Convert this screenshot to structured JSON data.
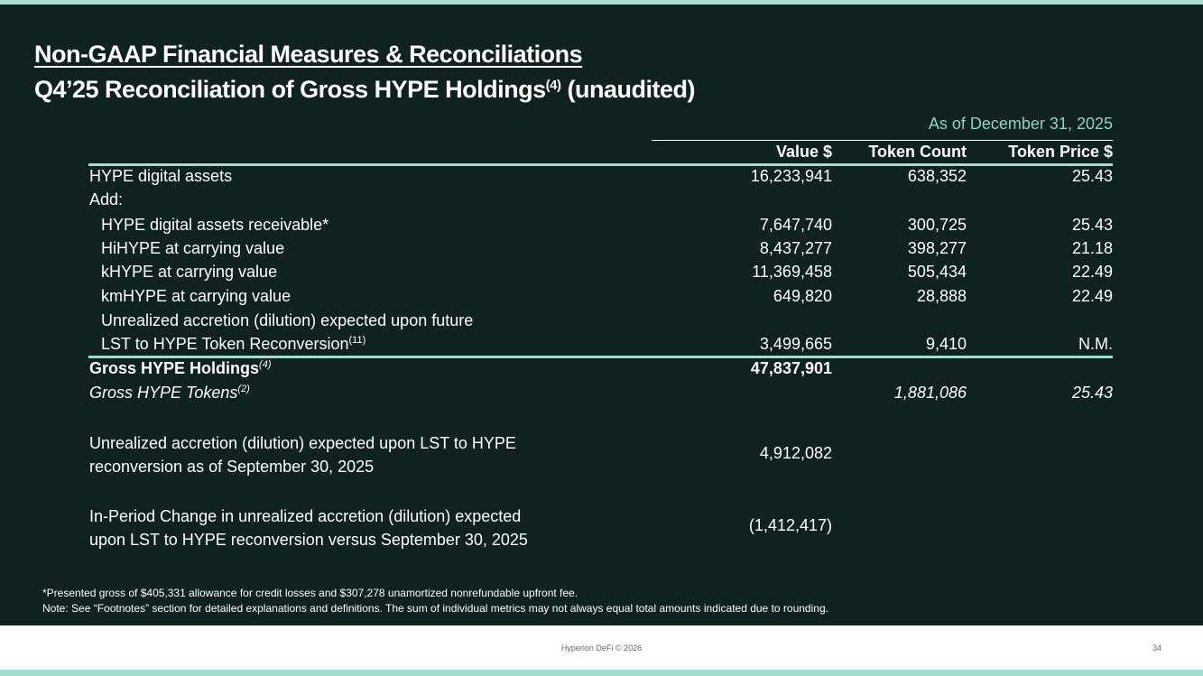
{
  "title": "Non-GAAP Financial Measures & Reconciliations",
  "subtitle": {
    "text": "Q4’25 Reconciliation of Gross HYPE Holdings",
    "sup": "(4)",
    "suffix": " (unaudited)"
  },
  "table": {
    "as_of": "As of December 31, 2025",
    "columns": [
      "Value $",
      "Token Count",
      "Token Price $"
    ],
    "rows": [
      {
        "label": "HYPE digital assets",
        "value": "16,233,941",
        "count": "638,352",
        "price": "25.43"
      },
      {
        "label": "Add:",
        "value": "",
        "count": "",
        "price": ""
      },
      {
        "label": "HYPE digital assets receivable*",
        "value": "7,647,740",
        "count": "300,725",
        "price": "25.43"
      },
      {
        "label": "HiHYPE at carrying value",
        "value": "8,437,277",
        "count": "398,277",
        "price": "21.18"
      },
      {
        "label": "kHYPE at carrying value",
        "value": "11,369,458",
        "count": "505,434",
        "price": "22.49"
      },
      {
        "label": "kmHYPE at carrying value",
        "value": "649,820",
        "count": "28,888",
        "price": "22.49"
      },
      {
        "label": "Unrealized accretion (dilution) expected upon future",
        "value": "",
        "count": "",
        "price": ""
      },
      {
        "label": "LST to HYPE Token Reconversion",
        "sup": "(11)",
        "value": "3,499,665",
        "count": "9,410",
        "price": "N.M."
      }
    ],
    "total": {
      "label": "Gross HYPE Holdings",
      "sup": "(4)",
      "value": "47,837,901"
    },
    "tokens": {
      "label": "Gross HYPE Tokens",
      "sup": "(2)",
      "count": "1,881,086",
      "price": "25.43"
    }
  },
  "extra": [
    {
      "line1": "Unrealized accretion (dilution) expected upon LST to HYPE",
      "line2": "reconversion as of September 30, 2025",
      "value": "4,912,082"
    },
    {
      "line1": "In-Period Change in unrealized accretion (dilution) expected",
      "line2": "upon LST to HYPE reconversion versus September 30, 2025",
      "value": "(1,412,417)"
    }
  ],
  "notes": {
    "note1": "*Presented gross of $405,331 allowance for credit losses and $307,278 unamortized nonrefundable upfront fee.",
    "note2": "Note: See “Footnotes” section for detailed explanations and definitions. The sum of individual metrics may not always equal total amounts indicated due to rounding."
  },
  "footer": {
    "text": "Hyperion DeFi © 2026",
    "page": "34"
  },
  "colors": {
    "background": "#0f221f",
    "accent": "#a3dccf",
    "asof_text": "#8fd2c4"
  }
}
